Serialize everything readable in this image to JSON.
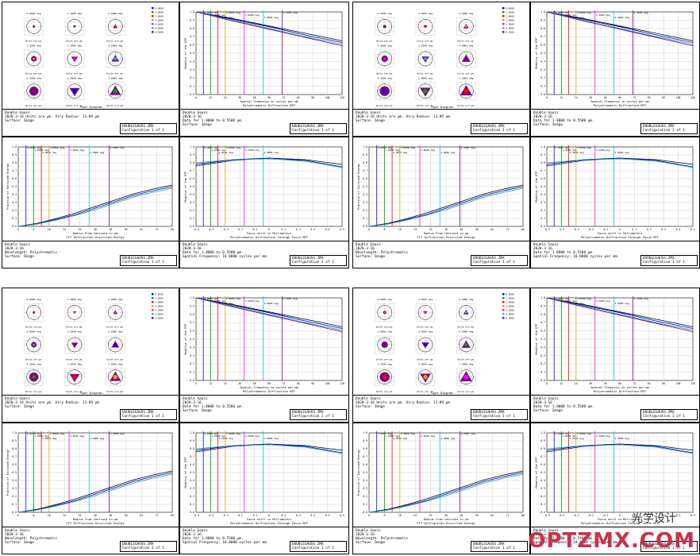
{
  "report": {
    "lens_name": "Double Gauss",
    "date": "2020-3-16",
    "field_labels": [
      "0.0000 deg",
      "1.0000 deg",
      "2.0000 deg",
      "3.0000 deg",
      "3.5000 deg",
      "4.0000 deg",
      "4.5000 deg",
      "5.0000 deg",
      "7.0000 deg"
    ],
    "spot_title": "Spot Diagram",
    "spot_units": "Units are µm.",
    "spot_airy": "Airy Radius: 13.89 µm",
    "surface_image": "Surface: Image",
    "mtf_title": "Polychromatic Diffraction MTF",
    "mtf_xlabel": "Spatial Frequency in cycles per mm",
    "mtf_ylabel": "Modulus of the OTF",
    "mtf_range": "Data for 1.0000 to 0.5500 µm.",
    "ee_title": "FFT Diffraction Encircled Energy",
    "ee_xlabel": "Radius From Centroid in µm",
    "ee_ylabel": "Fraction of Enclosed Energy",
    "ee_wavelength": "Wavelength: Polychromatic",
    "tf_title": "Polychromatic Diffraction Through Focus MTF",
    "tf_xlabel": "Focus shift in Millimeters",
    "tf_ylabel": "Modulus of the OTF",
    "tf_freq": "Spatial Frequency: 10.0000 cycles per mm.",
    "file_name": "DOUBLEGAUSS.ZMX",
    "config": "Configuration 1 of 1"
  },
  "legend_items": [
    "0.0000",
    "1.0000",
    "2.0000",
    "3.0000",
    "3.5000",
    "4.0000",
    "4.5000"
  ],
  "colors": {
    "series": [
      "#0000ff",
      "#00a000",
      "#ff0000",
      "#e0a000",
      "#ff00ff",
      "#00c0ff",
      "#800080"
    ],
    "frame": "#000000",
    "grid": "#b0b0b0"
  },
  "watermark": {
    "text": "OPTZMX.COM",
    "sub": "光学设计"
  },
  "chart_data": [
    {
      "type": "line",
      "panel": "mtf",
      "title": "Polychromatic Diffraction MTF",
      "xlabel": "Spatial Frequency in cycles per mm",
      "ylabel": "Modulus of the OTF",
      "xlim": [
        0,
        120
      ],
      "ylim": [
        0,
        1
      ],
      "x": [
        0,
        30,
        60,
        90,
        120
      ],
      "series": [
        {
          "values": [
            1.0,
            0.92,
            0.83,
            0.74,
            0.65
          ]
        },
        {
          "values": [
            1.0,
            0.91,
            0.82,
            0.72,
            0.63
          ]
        },
        {
          "values": [
            1.0,
            0.9,
            0.8,
            0.7,
            0.61
          ]
        },
        {
          "values": [
            1.0,
            0.89,
            0.79,
            0.69,
            0.59
          ]
        }
      ],
      "grid": true
    },
    {
      "type": "line",
      "panel": "encircled_energy",
      "title": "FFT Diffraction Encircled Energy",
      "xlabel": "Radius From Centroid in µm",
      "ylabel": "Fraction of Enclosed Energy",
      "xlim": [
        0,
        80
      ],
      "ylim": [
        0,
        1
      ],
      "x": [
        0,
        10,
        20,
        30,
        40,
        50,
        60,
        70,
        80
      ],
      "series": [
        {
          "values": [
            0,
            0.04,
            0.1,
            0.17,
            0.25,
            0.33,
            0.41,
            0.47,
            0.52
          ]
        },
        {
          "values": [
            0,
            0.03,
            0.09,
            0.15,
            0.23,
            0.31,
            0.39,
            0.45,
            0.5
          ]
        },
        {
          "values": [
            0,
            0.03,
            0.08,
            0.14,
            0.21,
            0.29,
            0.37,
            0.43,
            0.48
          ]
        }
      ],
      "grid": true
    },
    {
      "type": "line",
      "panel": "through_focus",
      "title": "Polychromatic Diffraction Through Focus MTF",
      "xlabel": "Focus shift in Millimeters",
      "ylabel": "Modulus of the OTF",
      "xlim": [
        -0.5,
        0.5
      ],
      "ylim": [
        0,
        1
      ],
      "x": [
        -0.5,
        -0.25,
        0,
        0.25,
        0.5
      ],
      "series": [
        {
          "values": [
            0.78,
            0.84,
            0.86,
            0.84,
            0.78
          ]
        },
        {
          "values": [
            0.76,
            0.83,
            0.86,
            0.83,
            0.75
          ]
        },
        {
          "values": [
            0.8,
            0.84,
            0.85,
            0.82,
            0.74
          ]
        }
      ],
      "grid": true
    }
  ]
}
